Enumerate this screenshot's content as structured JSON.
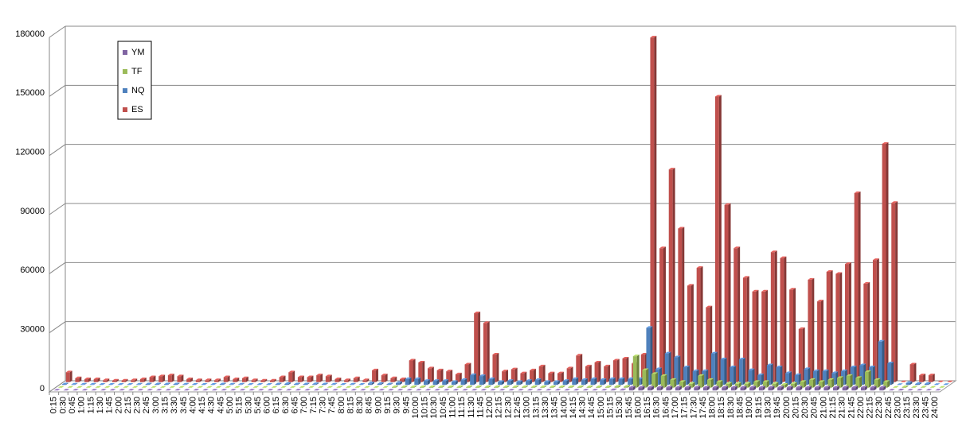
{
  "chart_data": {
    "type": "bar3d",
    "categories": [
      "0:15",
      "0:30",
      "0:45",
      "1:00",
      "1:15",
      "1:30",
      "1:45",
      "2:00",
      "2:15",
      "2:30",
      "2:45",
      "3:00",
      "3:15",
      "3:30",
      "3:45",
      "4:00",
      "4:15",
      "4:30",
      "4:45",
      "5:00",
      "5:15",
      "5:30",
      "5:45",
      "6:00",
      "6:15",
      "6:30",
      "6:45",
      "7:00",
      "7:15",
      "7:30",
      "7:45",
      "8:00",
      "8:15",
      "8:30",
      "8:45",
      "9:00",
      "9:15",
      "9:30",
      "9:45",
      "10:00",
      "10:15",
      "10:30",
      "10:45",
      "11:00",
      "11:15",
      "11:30",
      "11:45",
      "12:00",
      "12:15",
      "12:30",
      "12:45",
      "13:00",
      "13:15",
      "13:30",
      "13:45",
      "14:00",
      "14:15",
      "14:30",
      "14:45",
      "15:00",
      "15:15",
      "15:30",
      "15:45",
      "16:00",
      "16:15",
      "16:30",
      "16:45",
      "17:00",
      "17:15",
      "17:30",
      "17:45",
      "18:00",
      "18:15",
      "18:30",
      "18:45",
      "19:00",
      "19:15",
      "19:30",
      "19:45",
      "20:00",
      "20:15",
      "20:30",
      "20:45",
      "21:00",
      "21:15",
      "21:30",
      "21:45",
      "22:00",
      "22:15",
      "22:30",
      "22:45",
      "23:00",
      "23:15",
      "23:30",
      "23:45",
      "24:00"
    ],
    "series": [
      {
        "name": "YM",
        "color": "#8064a2",
        "values": [
          0,
          0,
          0,
          0,
          0,
          0,
          0,
          0,
          0,
          0,
          0,
          0,
          0,
          0,
          0,
          0,
          0,
          0,
          0,
          0,
          0,
          0,
          0,
          0,
          0,
          0,
          0,
          0,
          0,
          0,
          0,
          0,
          0,
          0,
          0,
          0,
          0,
          0,
          0,
          0,
          0,
          0,
          0,
          0,
          0,
          0,
          0,
          0,
          0,
          0,
          0,
          0,
          0,
          0,
          0,
          0,
          0,
          0,
          0,
          0,
          200,
          200,
          1500,
          1500,
          1500,
          1500,
          1500,
          1500,
          1500,
          1500,
          1500,
          1500,
          1500,
          1500,
          1500,
          1500,
          1500,
          1500,
          1500,
          1500,
          1500,
          1500,
          1500,
          1500,
          1500,
          1500,
          1500,
          1500,
          1500,
          1500,
          0,
          100,
          0,
          0,
          0,
          0
        ]
      },
      {
        "name": "TF",
        "color": "#9bbb59",
        "values": [
          0,
          0,
          0,
          0,
          0,
          0,
          0,
          0,
          0,
          0,
          0,
          0,
          0,
          0,
          0,
          0,
          0,
          0,
          0,
          0,
          0,
          0,
          0,
          0,
          0,
          0,
          0,
          0,
          0,
          0,
          0,
          0,
          0,
          0,
          0,
          0,
          300,
          300,
          300,
          300,
          300,
          300,
          300,
          300,
          300,
          300,
          300,
          300,
          300,
          300,
          300,
          300,
          300,
          300,
          300,
          300,
          300,
          300,
          300,
          300,
          500,
          500,
          16000,
          9000,
          7000,
          6000,
          4000,
          3000,
          2000,
          6000,
          4000,
          3000,
          2000,
          2000,
          2000,
          3000,
          3000,
          2000,
          1500,
          2000,
          3000,
          4000,
          3000,
          4000,
          5000,
          6000,
          5000,
          8000,
          4000,
          3000,
          0,
          300,
          100,
          100,
          0,
          0
        ]
      },
      {
        "name": "NQ",
        "color": "#4f81bd",
        "values": [
          300,
          200,
          200,
          200,
          100,
          100,
          100,
          100,
          200,
          300,
          300,
          300,
          300,
          200,
          100,
          100,
          100,
          300,
          200,
          200,
          100,
          100,
          100,
          300,
          500,
          300,
          300,
          400,
          300,
          200,
          100,
          200,
          100,
          800,
          500,
          300,
          1000,
          3000,
          3000,
          2000,
          2000,
          2000,
          1500,
          2500,
          5000,
          4500,
          3000,
          1500,
          2000,
          1500,
          2000,
          2500,
          1500,
          1500,
          2000,
          3000,
          2500,
          3000,
          2500,
          3000,
          3000,
          3000,
          3000,
          29000,
          8000,
          16000,
          14000,
          9000,
          7000,
          7000,
          16000,
          13000,
          9000,
          13000,
          7500,
          5000,
          10000,
          9000,
          6000,
          5000,
          8000,
          7000,
          7000,
          6000,
          7000,
          9000,
          10000,
          9000,
          22000,
          11000,
          0,
          1000,
          500,
          500,
          0,
          0
        ]
      },
      {
        "name": "ES",
        "color": "#c0504d",
        "values": [
          5000,
          2000,
          1500,
          1500,
          1000,
          800,
          800,
          1000,
          1500,
          2500,
          3000,
          3500,
          3000,
          1500,
          1000,
          1000,
          1000,
          2500,
          1500,
          2000,
          1000,
          800,
          800,
          2500,
          5000,
          2500,
          2500,
          3500,
          3000,
          1500,
          1000,
          2000,
          1000,
          6000,
          3500,
          2000,
          1500,
          11000,
          10000,
          7000,
          6000,
          5500,
          4000,
          9000,
          35000,
          30000,
          14000,
          5500,
          6500,
          4500,
          6000,
          8000,
          4500,
          4500,
          7000,
          13500,
          8000,
          10000,
          8000,
          11000,
          12000,
          9500,
          14000,
          175000,
          68000,
          108000,
          78000,
          49000,
          58000,
          38000,
          145000,
          90000,
          68000,
          53000,
          46000,
          46000,
          66000,
          63000,
          47000,
          27000,
          52000,
          41000,
          56000,
          55000,
          60000,
          96000,
          50000,
          62000,
          121000,
          91000,
          0,
          9000,
          3500,
          3500,
          0,
          0
        ]
      }
    ],
    "ylim": [
      0,
      180000
    ],
    "yticks": [
      0,
      30000,
      60000,
      90000,
      120000,
      150000,
      180000
    ],
    "grid": true,
    "legend": "top-left"
  }
}
